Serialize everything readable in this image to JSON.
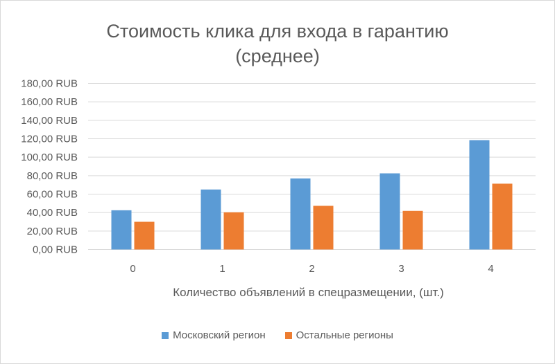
{
  "chart_data": {
    "type": "bar",
    "title": "Стоимость клика для входа в гарантию (среднее)",
    "title_lines": [
      "Стоимость клика для входа в гарантию",
      "(среднее)"
    ],
    "xlabel": "Количество объявлений в спецразмещении, (шт.)",
    "ylabel": "",
    "categories": [
      "0",
      "1",
      "2",
      "3",
      "4"
    ],
    "ylim": [
      0,
      180
    ],
    "yticks": [
      "0,00 RUB",
      "20,00 RUB",
      "40,00 RUB",
      "60,00 RUB",
      "80,00 RUB",
      "100,00 RUB",
      "120,00 RUB",
      "140,00 RUB",
      "160,00 RUB",
      "180,00 RUB"
    ],
    "grid": true,
    "legend_position": "bottom",
    "series": [
      {
        "name": "Московский регион",
        "color": "#5b9bd5",
        "values": [
          42.5,
          65,
          77,
          82.5,
          118.5
        ]
      },
      {
        "name": "Остальные регионы",
        "color": "#ed7d31",
        "values": [
          30,
          40.3,
          47.3,
          41.8,
          71.3
        ]
      }
    ]
  }
}
